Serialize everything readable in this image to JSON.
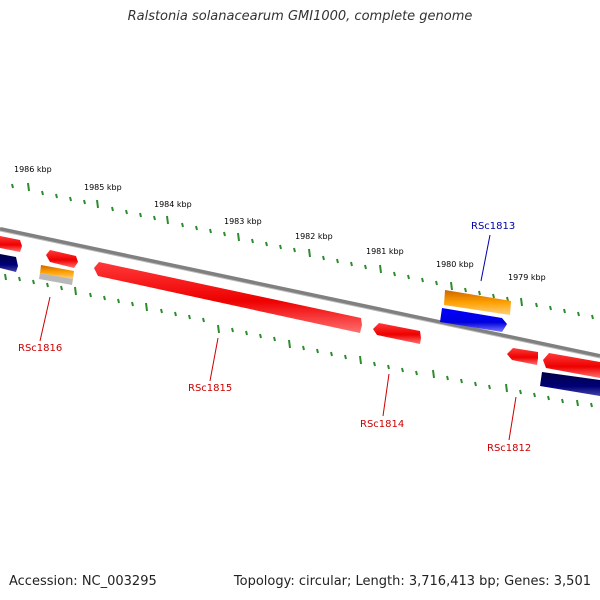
{
  "title": "Ralstonia solanacearum GMI1000, complete genome",
  "footer": {
    "accession": "Accession: NC_003295",
    "summary": "Topology: circular; Length: 3,716,413 bp; Genes: 3,501"
  },
  "scale": {
    "kbp_labels": [
      "1986 kbp",
      "1985 kbp",
      "1984 kbp",
      "1983 kbp",
      "1982 kbp",
      "1981 kbp",
      "1980 kbp",
      "1979 kbp"
    ]
  },
  "genes": [
    {
      "id": "rsc1816",
      "label": "RSc1816",
      "label_color": "#cc0000"
    },
    {
      "id": "rsc1815",
      "label": "RSc1815",
      "label_color": "#cc0000"
    },
    {
      "id": "rsc1814",
      "label": "RSc1814",
      "label_color": "#cc0000"
    },
    {
      "id": "rsc1813",
      "label": "RSc1813",
      "label_color": "#0000aa"
    },
    {
      "id": "rsc1812",
      "label": "RSc1812",
      "label_color": "#cc0000"
    }
  ],
  "colors": {
    "backbone": "#888888",
    "tick": "#2e8b2e",
    "gene_red": "#ee0000",
    "gene_orange": "#f59b00",
    "gene_blue": "#0000ee",
    "gene_navy": "#000066",
    "gene_grey": "#b8b8b8"
  }
}
